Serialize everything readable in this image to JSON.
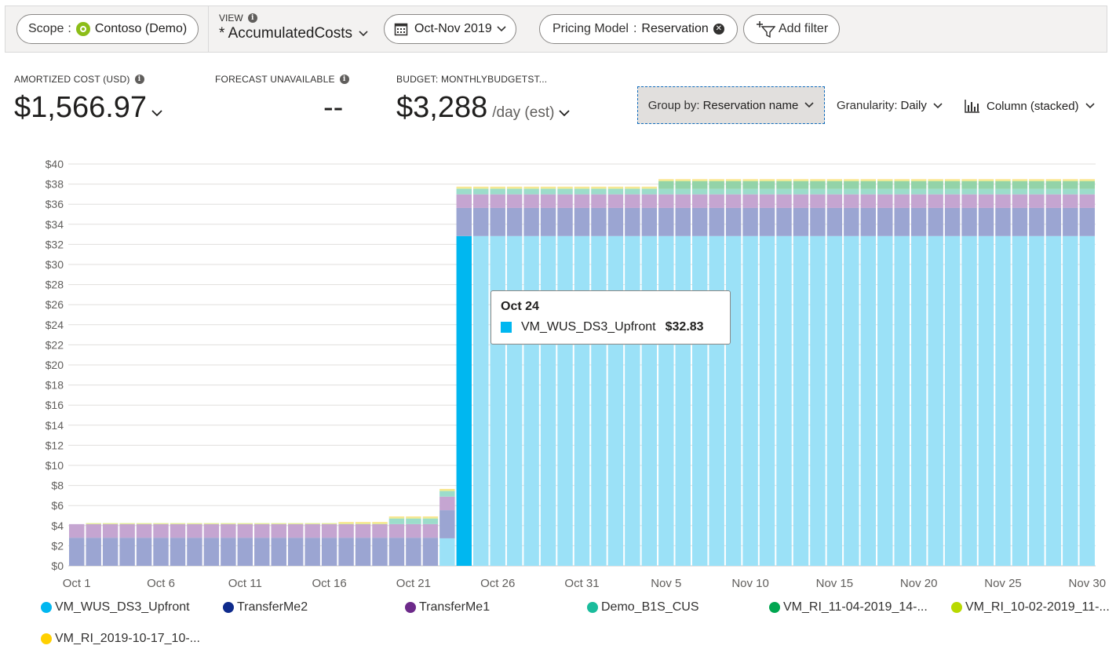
{
  "toolbar": {
    "scope_label": "Scope",
    "scope_separator": ":",
    "scope_value": "Contoso (Demo)",
    "view_label": "VIEW",
    "view_name": "* AccumulatedCosts",
    "date_range": "Oct-Nov 2019",
    "filter_key": "Pricing Model",
    "filter_separator": ":",
    "filter_value": "Reservation",
    "add_filter": "Add filter"
  },
  "kpis": {
    "amortized_label": "AMORTIZED COST (USD)",
    "amortized_value": "$1,566.97",
    "forecast_label": "FORECAST UNAVAILABLE",
    "forecast_value": "--",
    "budget_label": "BUDGET: MONTHLYBUDGETST...",
    "budget_value": "$3,288",
    "budget_unit": "/day (est)"
  },
  "controls": {
    "groupby_label": "Group by:",
    "groupby_value": "Reservation name",
    "granularity_label": "Granularity:",
    "granularity_value": "Daily",
    "chart_type_label": "Column (stacked)"
  },
  "tooltip": {
    "date": "Oct 24",
    "series": "VM_WUS_DS3_Upfront",
    "value": "$32.83"
  },
  "legend": [
    {
      "name": "VM_WUS_DS3_Upfront",
      "color": "#00b7f0"
    },
    {
      "name": "TransferMe2",
      "color": "#0f2b8c"
    },
    {
      "name": "TransferMe1",
      "color": "#6d2a8a"
    },
    {
      "name": "Demo_B1S_CUS",
      "color": "#1abc9c"
    },
    {
      "name": "VM_RI_11-04-2019_14-...",
      "color": "#00a650"
    },
    {
      "name": "VM_RI_10-02-2019_11-...",
      "color": "#b8d900"
    },
    {
      "name": "VM_RI_2019-10-17_10-...",
      "color": "#ffd000"
    }
  ],
  "chart_data": {
    "type": "bar",
    "stacked": true,
    "ylim": [
      0,
      40
    ],
    "y_ticks": [
      "$0",
      "$2",
      "$4",
      "$6",
      "$8",
      "$10",
      "$12",
      "$14",
      "$16",
      "$18",
      "$20",
      "$22",
      "$24",
      "$26",
      "$28",
      "$30",
      "$32",
      "$34",
      "$36",
      "$38",
      "$40"
    ],
    "x_tick_labels": [
      "Oct 1",
      "Oct 6",
      "Oct 11",
      "Oct 16",
      "Oct 21",
      "Oct 26",
      "Oct 31",
      "Nov 5",
      "Nov 10",
      "Nov 15",
      "Nov 20",
      "Nov 25",
      "Nov 30"
    ],
    "x_tick_every": 5,
    "highlight_index": 23,
    "categories": [
      "Oct 1",
      "Oct 2",
      "Oct 3",
      "Oct 4",
      "Oct 5",
      "Oct 6",
      "Oct 7",
      "Oct 8",
      "Oct 9",
      "Oct 10",
      "Oct 11",
      "Oct 12",
      "Oct 13",
      "Oct 14",
      "Oct 15",
      "Oct 16",
      "Oct 17",
      "Oct 18",
      "Oct 19",
      "Oct 20",
      "Oct 21",
      "Oct 22",
      "Oct 23",
      "Oct 24",
      "Oct 25",
      "Oct 26",
      "Oct 27",
      "Oct 28",
      "Oct 29",
      "Oct 30",
      "Oct 31",
      "Nov 1",
      "Nov 2",
      "Nov 3",
      "Nov 4",
      "Nov 5",
      "Nov 6",
      "Nov 7",
      "Nov 8",
      "Nov 9",
      "Nov 10",
      "Nov 11",
      "Nov 12",
      "Nov 13",
      "Nov 14",
      "Nov 15",
      "Nov 16",
      "Nov 17",
      "Nov 18",
      "Nov 19",
      "Nov 20",
      "Nov 21",
      "Nov 22",
      "Nov 23",
      "Nov 24",
      "Nov 25",
      "Nov 26",
      "Nov 27",
      "Nov 28",
      "Nov 29",
      "Nov 30"
    ],
    "series": [
      {
        "name": "VM_WUS_DS3_Upfront",
        "color": "#9be1f7",
        "values": [
          0,
          0,
          0,
          0,
          0,
          0,
          0,
          0,
          0,
          0,
          0,
          0,
          0,
          0,
          0,
          0,
          0,
          0,
          0,
          0,
          0,
          0,
          2.74,
          32.83,
          32.83,
          32.83,
          32.83,
          32.83,
          32.83,
          32.83,
          32.83,
          32.83,
          32.83,
          32.83,
          32.83,
          32.83,
          32.83,
          32.83,
          32.83,
          32.83,
          32.83,
          32.83,
          32.83,
          32.83,
          32.83,
          32.83,
          32.83,
          32.83,
          32.83,
          32.83,
          32.83,
          32.83,
          32.83,
          32.83,
          32.83,
          32.83,
          32.83,
          32.83,
          32.83,
          32.83,
          32.83
        ]
      },
      {
        "name": "TransferMe2",
        "color": "#9ba5d2",
        "values": [
          2.8,
          2.8,
          2.8,
          2.8,
          2.8,
          2.8,
          2.8,
          2.8,
          2.8,
          2.8,
          2.8,
          2.8,
          2.8,
          2.8,
          2.8,
          2.8,
          2.8,
          2.8,
          2.8,
          2.8,
          2.8,
          2.8,
          2.8,
          2.8,
          2.8,
          2.8,
          2.8,
          2.8,
          2.8,
          2.8,
          2.8,
          2.8,
          2.8,
          2.8,
          2.8,
          2.8,
          2.8,
          2.8,
          2.8,
          2.8,
          2.8,
          2.8,
          2.8,
          2.8,
          2.8,
          2.8,
          2.8,
          2.8,
          2.8,
          2.8,
          2.8,
          2.8,
          2.8,
          2.8,
          2.8,
          2.8,
          2.8,
          2.8,
          2.8,
          2.8,
          2.8
        ]
      },
      {
        "name": "TransferMe1",
        "color": "#c5a5d1",
        "values": [
          1.35,
          1.35,
          1.35,
          1.35,
          1.35,
          1.35,
          1.35,
          1.35,
          1.35,
          1.35,
          1.35,
          1.35,
          1.35,
          1.35,
          1.35,
          1.35,
          1.35,
          1.35,
          1.35,
          1.35,
          1.35,
          1.35,
          1.35,
          1.35,
          1.35,
          1.35,
          1.35,
          1.35,
          1.35,
          1.35,
          1.35,
          1.35,
          1.35,
          1.35,
          1.35,
          1.35,
          1.35,
          1.35,
          1.35,
          1.35,
          1.35,
          1.35,
          1.35,
          1.35,
          1.35,
          1.35,
          1.35,
          1.35,
          1.35,
          1.35,
          1.35,
          1.35,
          1.35,
          1.35,
          1.35,
          1.35,
          1.35,
          1.35,
          1.35,
          1.35,
          1.35
        ]
      },
      {
        "name": "Demo_B1S_CUS",
        "color": "#9cdccb",
        "values": [
          0,
          0,
          0,
          0,
          0,
          0,
          0,
          0,
          0,
          0,
          0,
          0,
          0,
          0,
          0,
          0,
          0,
          0,
          0,
          0.55,
          0.55,
          0.55,
          0.55,
          0.55,
          0.55,
          0.55,
          0.55,
          0.55,
          0.55,
          0.55,
          0.55,
          0.55,
          0.55,
          0.55,
          0.55,
          0.55,
          0.55,
          0.55,
          0.55,
          0.55,
          0.55,
          0.55,
          0.55,
          0.55,
          0.55,
          0.55,
          0.55,
          0.55,
          0.55,
          0.55,
          0.55,
          0.55,
          0.55,
          0.55,
          0.55,
          0.55,
          0.55,
          0.55,
          0.55,
          0.55,
          0.55
        ]
      },
      {
        "name": "VM_RI_11-04-2019_14-...",
        "color": "#93d3a8",
        "values": [
          0,
          0,
          0,
          0,
          0,
          0,
          0,
          0,
          0,
          0,
          0,
          0,
          0,
          0,
          0,
          0,
          0,
          0,
          0,
          0,
          0,
          0,
          0,
          0,
          0,
          0,
          0,
          0,
          0,
          0,
          0,
          0,
          0,
          0,
          0,
          0.75,
          0.75,
          0.75,
          0.75,
          0.75,
          0.75,
          0.75,
          0.75,
          0.75,
          0.75,
          0.75,
          0.75,
          0.75,
          0.75,
          0.75,
          0.75,
          0.75,
          0.75,
          0.75,
          0.75,
          0.75,
          0.75,
          0.75,
          0.75,
          0.75,
          0.75
        ]
      },
      {
        "name": "VM_RI_10-02-2019_11-...",
        "color": "#dde98f",
        "values": [
          0,
          0.1,
          0.1,
          0.1,
          0.1,
          0.1,
          0.1,
          0.1,
          0.1,
          0.1,
          0.1,
          0.1,
          0.1,
          0.1,
          0.1,
          0.1,
          0.1,
          0.1,
          0.1,
          0.1,
          0.1,
          0.1,
          0.1,
          0.1,
          0.1,
          0.1,
          0.1,
          0.1,
          0.1,
          0.1,
          0.1,
          0.1,
          0.1,
          0.1,
          0.1,
          0.1,
          0.1,
          0.1,
          0.1,
          0.1,
          0.1,
          0.1,
          0.1,
          0.1,
          0.1,
          0.1,
          0.1,
          0.1,
          0.1,
          0.1,
          0.1,
          0.1,
          0.1,
          0.1,
          0.1,
          0.1,
          0.1,
          0.1,
          0.1,
          0.1,
          0.1
        ]
      },
      {
        "name": "VM_RI_2019-10-17_10-...",
        "color": "#fde690",
        "values": [
          0,
          0,
          0,
          0,
          0,
          0,
          0,
          0,
          0,
          0,
          0,
          0,
          0,
          0,
          0,
          0,
          0.12,
          0.12,
          0.12,
          0.12,
          0.12,
          0.12,
          0.12,
          0.12,
          0.12,
          0.12,
          0.12,
          0.12,
          0.12,
          0.12,
          0.12,
          0.12,
          0.12,
          0.12,
          0.12,
          0.12,
          0.12,
          0.12,
          0.12,
          0.12,
          0.12,
          0.12,
          0.12,
          0.12,
          0.12,
          0.12,
          0.12,
          0.12,
          0.12,
          0.12,
          0.12,
          0.12,
          0.12,
          0.12,
          0.12,
          0.12,
          0.12,
          0.12,
          0.12,
          0.12,
          0.12
        ]
      }
    ]
  }
}
